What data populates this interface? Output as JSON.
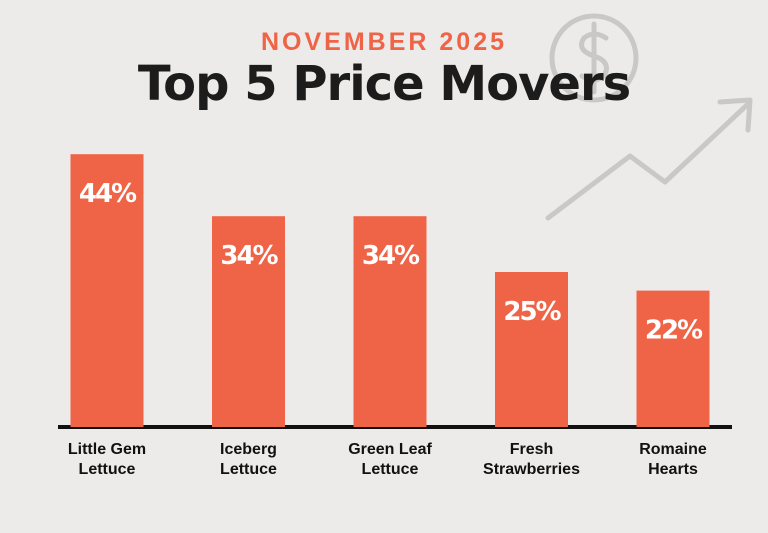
{
  "chart_data": {
    "type": "bar",
    "subtitle": "NOVEMBER 2025",
    "title": "Top 5 Price Movers",
    "categories": [
      "Little Gem\nLettuce",
      "Iceberg\nLettuce",
      "Green Leaf\nLettuce",
      "Fresh\nStrawberries",
      "Romaine\nHearts"
    ],
    "values": [
      44,
      34,
      34,
      25,
      22
    ],
    "value_labels": [
      "44%",
      "34%",
      "34%",
      "25%",
      "22%"
    ],
    "color": "#ef6447"
  }
}
